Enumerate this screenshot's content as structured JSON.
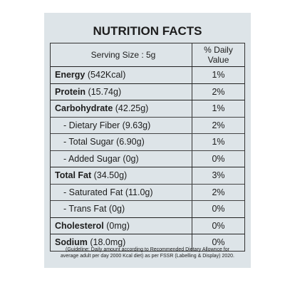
{
  "title": "NUTRITION FACTS",
  "header": {
    "serving": "Serving Size : 5g",
    "daily_value": [
      "% Daily",
      "Value"
    ]
  },
  "nutrients": [
    {
      "name": "Energy",
      "amount": "(542Kcal)",
      "dv": "1%"
    },
    {
      "name": "Protein",
      "amount": "(15.74g)",
      "dv": "2%"
    },
    {
      "name": "Carbohydrate",
      "amount": "(42.25g)",
      "dv": "1%",
      "subitems": [
        {
          "name": "- Dietary Fiber",
          "amount": "(9.63g)",
          "dv": "2%"
        },
        {
          "name": "- Total Sugar",
          "amount": "(6.90g)",
          "dv": "1%"
        },
        {
          "name": "- Added Sugar",
          "amount": "(0g)",
          "dv": "0%"
        }
      ]
    },
    {
      "name": "Total Fat",
      "amount": "(34.50g)",
      "dv": "3%",
      "subitems": [
        {
          "name": "- Saturated Fat",
          "amount": "(11.0g)",
          "dv": "2%"
        },
        {
          "name": "- Trans Fat",
          "amount": "(0g)",
          "dv": "0%"
        }
      ]
    },
    {
      "name": "Cholesterol",
      "amount": "(0mg)",
      "dv": "0%"
    },
    {
      "name": "Sodium",
      "amount": "(18.0mg)",
      "dv": "0%"
    }
  ],
  "footnote": [
    "(Guideline: Daily amount according to Recommended Dietary Allownce for",
    "average adult per day 2000 Kcal diet) as per FSSR (Labelling & Display) 2020."
  ]
}
